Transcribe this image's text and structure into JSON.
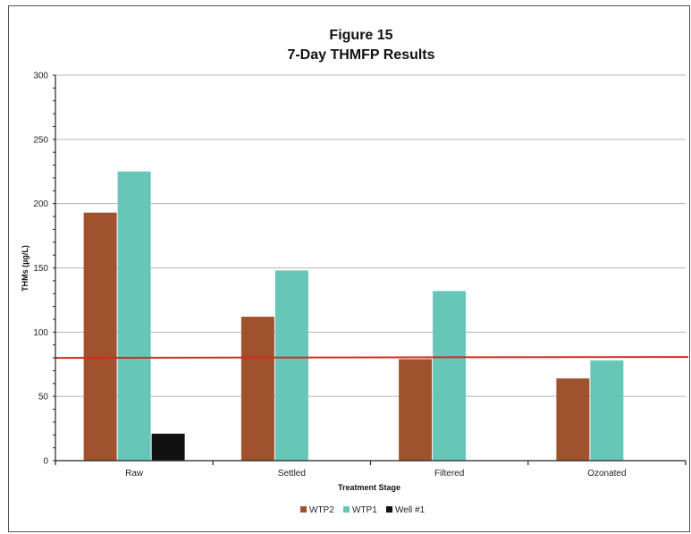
{
  "chart_data": {
    "type": "bar",
    "title": "Figure 15",
    "subtitle": "7-Day THMFP Results",
    "xlabel": "Treatment Stage",
    "ylabel": "THMs (µg/L)",
    "categories": [
      "Raw",
      "Settled",
      "Filtered",
      "Ozonated"
    ],
    "ylim": [
      0,
      300
    ],
    "yticks": [
      0,
      50,
      100,
      150,
      200,
      250,
      300
    ],
    "grid": true,
    "legend_position": "bottom",
    "series": [
      {
        "name": "WTP2",
        "color": "#A0522D",
        "values": [
          193,
          112,
          79,
          64
        ]
      },
      {
        "name": "WTP1",
        "color": "#66C6B8",
        "values": [
          225,
          148,
          132,
          78
        ]
      },
      {
        "name": "Well #1",
        "color": "#111111",
        "values": [
          21,
          null,
          null,
          null
        ]
      }
    ],
    "reference_line": {
      "value": 80,
      "color": "#D42A20"
    }
  }
}
